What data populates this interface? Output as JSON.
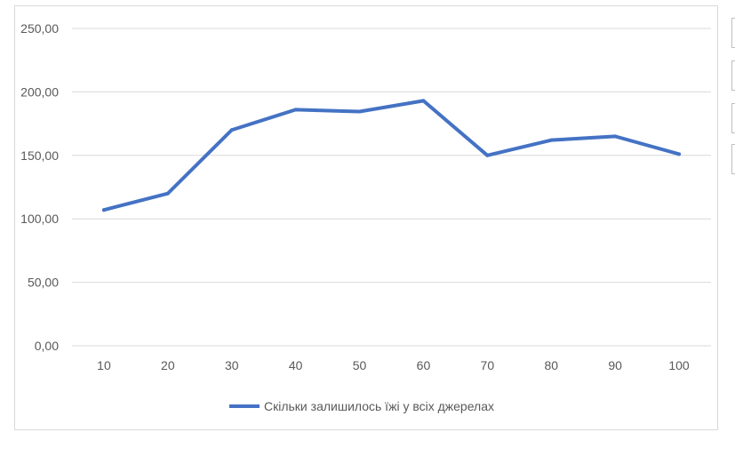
{
  "chart_data": {
    "type": "line",
    "categories": [
      "10",
      "20",
      "30",
      "40",
      "50",
      "60",
      "70",
      "80",
      "90",
      "100"
    ],
    "series": [
      {
        "name": "Скільки залишилось їжі у всіх джерелах",
        "values": [
          107,
          120,
          170,
          186,
          184.5,
          193,
          150,
          162,
          165,
          151
        ],
        "color": "#4472c4"
      }
    ],
    "y_ticks": [
      "0,00",
      "50,00",
      "100,00",
      "150,00",
      "200,00",
      "250,00"
    ],
    "ylim": [
      0,
      250
    ],
    "grid": true,
    "legend_position": "bottom"
  }
}
